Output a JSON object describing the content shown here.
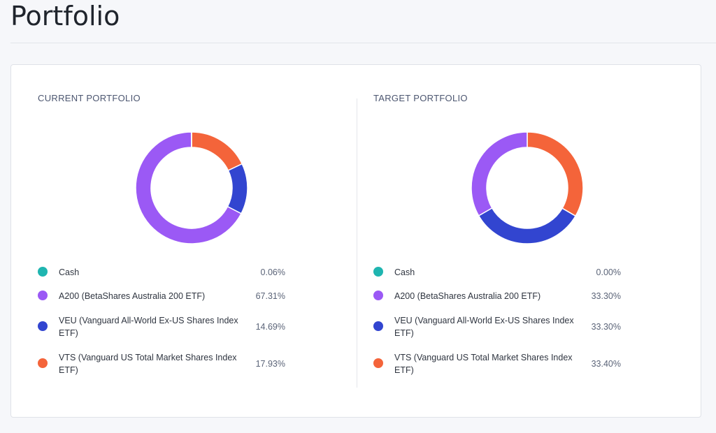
{
  "page": {
    "title": "Portfolio"
  },
  "current": {
    "heading": "CURRENT PORTFOLIO",
    "items": [
      {
        "label": "Cash",
        "percent_text": "0.06%",
        "value": 0.06,
        "color": "#1fb5b0"
      },
      {
        "label": "A200 (BetaShares Australia 200 ETF)",
        "percent_text": "67.31%",
        "value": 67.31,
        "color": "#9b59f5"
      },
      {
        "label": "VEU (Vanguard All-World Ex-US Shares Index ETF)",
        "percent_text": "14.69%",
        "value": 14.69,
        "color": "#3245d0"
      },
      {
        "label": "VTS (Vanguard US Total Market Shares Index ETF)",
        "percent_text": "17.93%",
        "value": 17.93,
        "color": "#f4643a"
      }
    ]
  },
  "target": {
    "heading": "TARGET PORTFOLIO",
    "items": [
      {
        "label": "Cash",
        "percent_text": "0.00%",
        "value": 0.0,
        "color": "#1fb5b0"
      },
      {
        "label": "A200 (BetaShares Australia 200 ETF)",
        "percent_text": "33.30%",
        "value": 33.3,
        "color": "#9b59f5"
      },
      {
        "label": "VEU (Vanguard All-World Ex-US Shares Index ETF)",
        "percent_text": "33.30%",
        "value": 33.3,
        "color": "#3245d0"
      },
      {
        "label": "VTS (Vanguard US Total Market Shares Index ETF)",
        "percent_text": "33.40%",
        "value": 33.4,
        "color": "#f4643a"
      }
    ]
  },
  "chart_data": [
    {
      "type": "pie",
      "categories": [
        "Cash",
        "A200 (BetaShares Australia 200 ETF)",
        "VEU (Vanguard All-World Ex-US Shares Index ETF)",
        "VTS (Vanguard US Total Market Shares Index ETF)"
      ],
      "values": [
        0.06,
        67.31,
        14.69,
        17.93
      ],
      "title": "CURRENT PORTFOLIO"
    },
    {
      "type": "pie",
      "categories": [
        "Cash",
        "A200 (BetaShares Australia 200 ETF)",
        "VEU (Vanguard All-World Ex-US Shares Index ETF)",
        "VTS (Vanguard US Total Market Shares Index ETF)"
      ],
      "values": [
        0.0,
        33.3,
        33.3,
        33.4
      ],
      "title": "TARGET PORTFOLIO"
    }
  ]
}
